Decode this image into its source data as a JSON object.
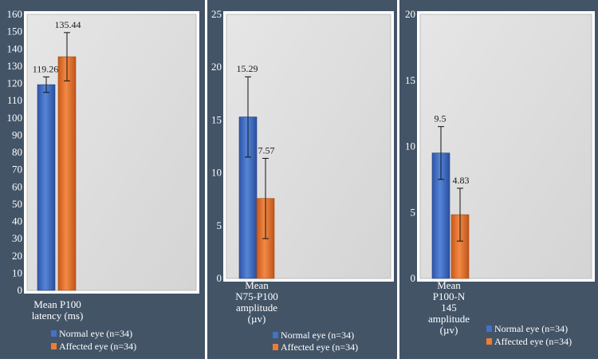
{
  "chart_data": [
    {
      "type": "bar",
      "categories": [
        "Mean P100 latency (ms)"
      ],
      "category_lines": [
        "Mean P100",
        "latency (ms)"
      ],
      "ylim": [
        0,
        160
      ],
      "yticks": [
        0,
        10,
        20,
        30,
        40,
        50,
        60,
        70,
        80,
        90,
        100,
        110,
        120,
        130,
        140,
        150,
        160
      ],
      "series": [
        {
          "name": "Normal eye (n=34)",
          "values": [
            119.26
          ],
          "label": "119.26",
          "error": [
            4.5
          ],
          "color": "#4472c4"
        },
        {
          "name": "Affected eye (n=34)",
          "values": [
            135.44
          ],
          "label": "135.44",
          "error": [
            14.0
          ],
          "color": "#ed7d31"
        }
      ],
      "legend": "bottom",
      "grid": false
    },
    {
      "type": "bar",
      "categories": [
        "Mean N75-P100 amplitude (µv)"
      ],
      "category_lines": [
        "Mean",
        "N75-P100",
        "amplitude",
        "(µv)"
      ],
      "ylim": [
        0,
        25
      ],
      "yticks": [
        0,
        5,
        10,
        15,
        20,
        25
      ],
      "series": [
        {
          "name": "Normal eye (n=34)",
          "values": [
            15.29
          ],
          "label": "15.29",
          "error": [
            3.8
          ],
          "color": "#4472c4"
        },
        {
          "name": "Affected eye (n=34)",
          "values": [
            7.57
          ],
          "label": "7.57",
          "error": [
            3.8
          ],
          "color": "#ed7d31"
        }
      ],
      "legend": "bottom",
      "grid": false
    },
    {
      "type": "bar",
      "categories": [
        "Mean P100-N 145 amplitude (µv)"
      ],
      "category_lines": [
        "Mean",
        "P100-N",
        "145",
        "amplitude",
        "(µv)"
      ],
      "ylim": [
        0,
        20
      ],
      "yticks": [
        0,
        5,
        10,
        15,
        20
      ],
      "series": [
        {
          "name": "Normal eye (n=34)",
          "values": [
            9.5
          ],
          "label": "9.5",
          "error": [
            2.0
          ],
          "color": "#4472c4"
        },
        {
          "name": "Affected eye (n=34)",
          "values": [
            4.83
          ],
          "label": "4.83",
          "error": [
            2.0
          ],
          "color": "#ed7d31"
        }
      ],
      "legend": "bottom-right",
      "grid": false
    }
  ]
}
